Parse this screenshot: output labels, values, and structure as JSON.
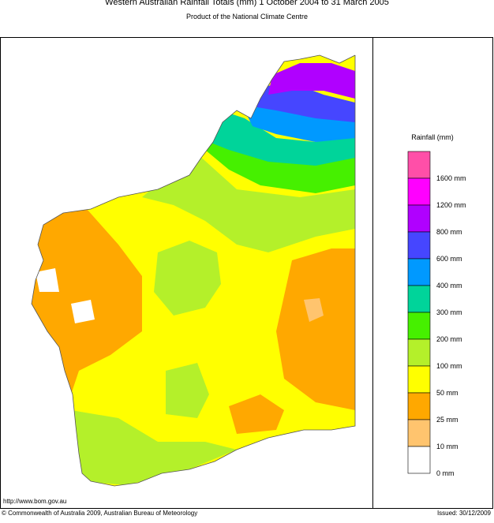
{
  "header": {
    "title": "Western Australian Rainfall Totals (mm) 1 October 2004 to 31 March 2005",
    "subtitle": "Product of the National Climate Centre"
  },
  "legend": {
    "title": "Rainfall (mm)",
    "colors": [
      "#ff4fa8",
      "#ff00ff",
      "#b000ff",
      "#4646ff",
      "#0099ff",
      "#00d49a",
      "#46f000",
      "#b4f02a",
      "#ffff00",
      "#ffa800",
      "#ffc46e",
      "#ffffff"
    ],
    "labels": [
      "1600 mm",
      "1200 mm",
      "800 mm",
      "600 mm",
      "400 mm",
      "300 mm",
      "200 mm",
      "100 mm",
      "50 mm",
      "25 mm",
      "10 mm",
      "0 mm"
    ]
  },
  "footer": {
    "url": "http://www.bom.gov.au",
    "copyright": "© Commonwealth of Australia 2009, Australian Bureau of Meteorology",
    "issued": "Issued: 30/12/2009"
  }
}
